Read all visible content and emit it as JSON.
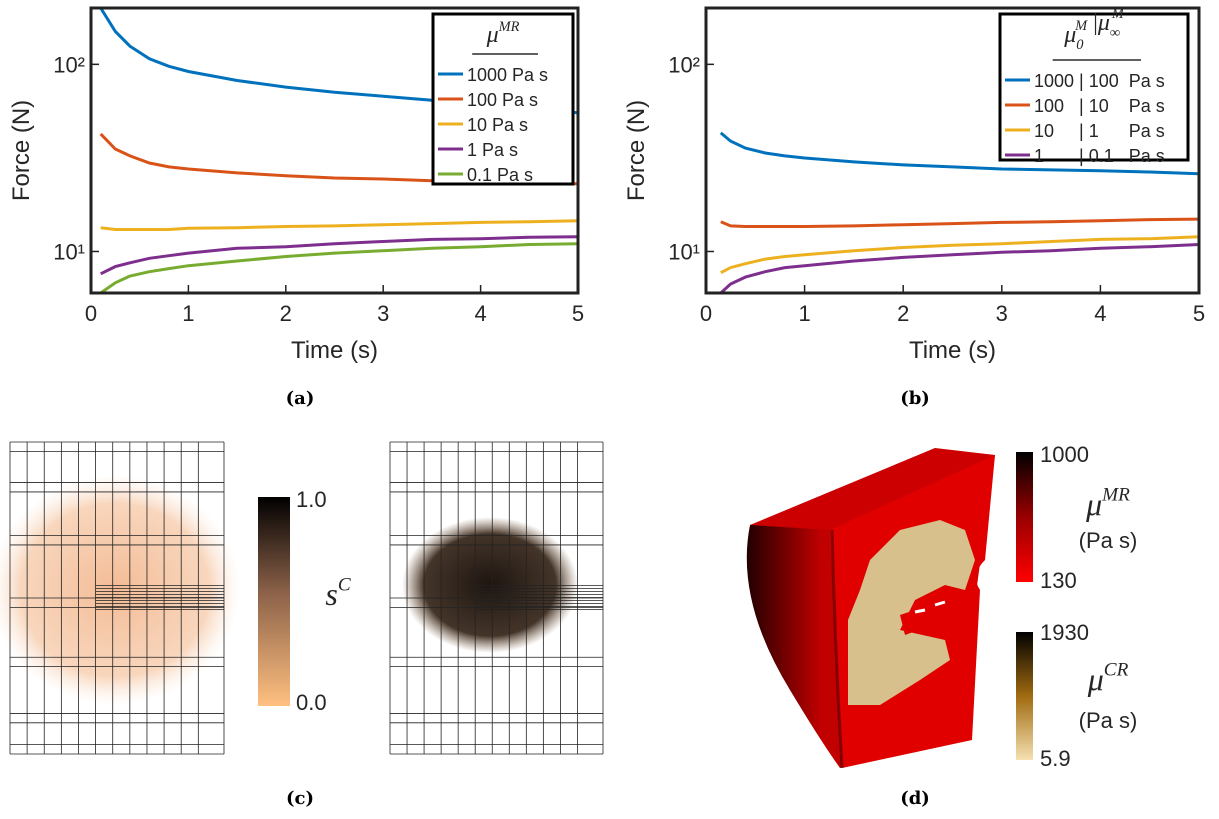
{
  "chart_data": [
    {
      "type": "line",
      "caption": "(a)",
      "xlabel": "Time (s)",
      "ylabel": "Force (N)",
      "log_y": true,
      "legend_title": [
        {
          "base": "μ",
          "sup": "MR"
        }
      ],
      "xlim": [
        0,
        5
      ],
      "xticks": [
        0,
        1,
        2,
        3,
        4,
        5
      ],
      "ylim": [
        6,
        200
      ],
      "yticks": [
        {
          "value": 10,
          "label": "10¹"
        },
        {
          "value": 100,
          "label": "10²"
        }
      ],
      "x": [
        0.1,
        0.25,
        0.4,
        0.6,
        0.8,
        1,
        1.5,
        2,
        2.5,
        3,
        3.5,
        4,
        4.5,
        5
      ],
      "series": [
        {
          "name": "1000 Pa s",
          "color": "#0072bd",
          "values": [
            200,
            150,
            125,
            107,
            97.6,
            91.6,
            82,
            75.6,
            71,
            67.6,
            64.3,
            62,
            59,
            55
          ]
        },
        {
          "name": "100 Pa s",
          "color": "#d95319",
          "values": [
            42.5,
            35.3,
            32.4,
            29.7,
            28.3,
            27.6,
            26.3,
            25.4,
            24.7,
            24.4,
            23.9,
            23.6,
            23.3,
            23
          ]
        },
        {
          "name": "10 Pa s",
          "color": "#edb120",
          "values": [
            13.4,
            13.1,
            13.1,
            13.1,
            13.1,
            13.3,
            13.4,
            13.6,
            13.7,
            13.9,
            14.1,
            14.3,
            14.4,
            14.6
          ]
        },
        {
          "name": "1 Pa s",
          "color": "#7e2f8e",
          "values": [
            7.6,
            8.3,
            8.7,
            9.2,
            9.5,
            9.8,
            10.4,
            10.6,
            11.0,
            11.3,
            11.6,
            11.7,
            11.9,
            12.0
          ]
        },
        {
          "name": "0.1 Pa s",
          "color": "#77ac30",
          "values": [
            6.0,
            6.8,
            7.4,
            7.8,
            8.1,
            8.4,
            8.9,
            9.4,
            9.8,
            10.1,
            10.4,
            10.6,
            10.9,
            11.0
          ]
        }
      ]
    },
    {
      "type": "line",
      "caption": "(b)",
      "xlabel": "Time (s)",
      "ylabel": "Force (N)",
      "log_y": true,
      "legend_title": [
        {
          "base": "μ",
          "sub": "0",
          "sup": "M"
        },
        {
          "sep": "|"
        },
        {
          "base": "μ",
          "sub": "∞",
          "sup": "M"
        }
      ],
      "xlim": [
        0,
        5
      ],
      "xticks": [
        0,
        1,
        2,
        3,
        4,
        5
      ],
      "ylim": [
        6,
        200
      ],
      "yticks": [
        {
          "value": 10,
          "label": "10¹"
        },
        {
          "value": 100,
          "label": "10²"
        }
      ],
      "x": [
        0.15,
        0.25,
        0.4,
        0.6,
        0.8,
        1,
        1.5,
        2,
        2.5,
        3,
        3.5,
        4,
        4.5,
        5
      ],
      "series": [
        {
          "name": "1000 | 100  Pa s",
          "color": "#0072bd",
          "values": [
            43,
            38.9,
            35.7,
            33.6,
            32.4,
            31.6,
            30.1,
            29,
            28.3,
            27.6,
            27.3,
            27,
            26.6,
            26
          ]
        },
        {
          "name": "100   | 10    Pa s",
          "color": "#d95319",
          "values": [
            14.4,
            13.7,
            13.6,
            13.6,
            13.6,
            13.6,
            13.7,
            13.9,
            14.1,
            14.3,
            14.4,
            14.6,
            14.8,
            14.9
          ]
        },
        {
          "name": "10     | 1      Pa s",
          "color": "#edb120",
          "values": [
            7.7,
            8.2,
            8.6,
            9.1,
            9.4,
            9.6,
            10.1,
            10.5,
            10.8,
            11.0,
            11.3,
            11.6,
            11.7,
            12.0
          ]
        },
        {
          "name": "1       | 0.1   Pa s",
          "color": "#7e2f8e",
          "values": [
            6.0,
            6.7,
            7.3,
            7.8,
            8.2,
            8.4,
            8.9,
            9.3,
            9.6,
            9.9,
            10.1,
            10.4,
            10.6,
            10.9
          ]
        }
      ]
    }
  ],
  "panels": [
    {
      "caption": "(c)",
      "colorbars": [
        {
          "label": {
            "base": "s",
            "sup": "C"
          },
          "ticks": [
            "1.0",
            "0.0"
          ]
        }
      ]
    },
    {
      "caption": "(d)",
      "colorbars": [
        {
          "label": {
            "base": "μ",
            "sup": "MR"
          },
          "unit": "(Pa s)",
          "ticks": [
            "1000",
            "130"
          ]
        },
        {
          "label": {
            "base": "μ",
            "sup": "CR"
          },
          "unit": "(Pa s)",
          "ticks": [
            "1930",
            "5.9"
          ]
        }
      ]
    }
  ]
}
